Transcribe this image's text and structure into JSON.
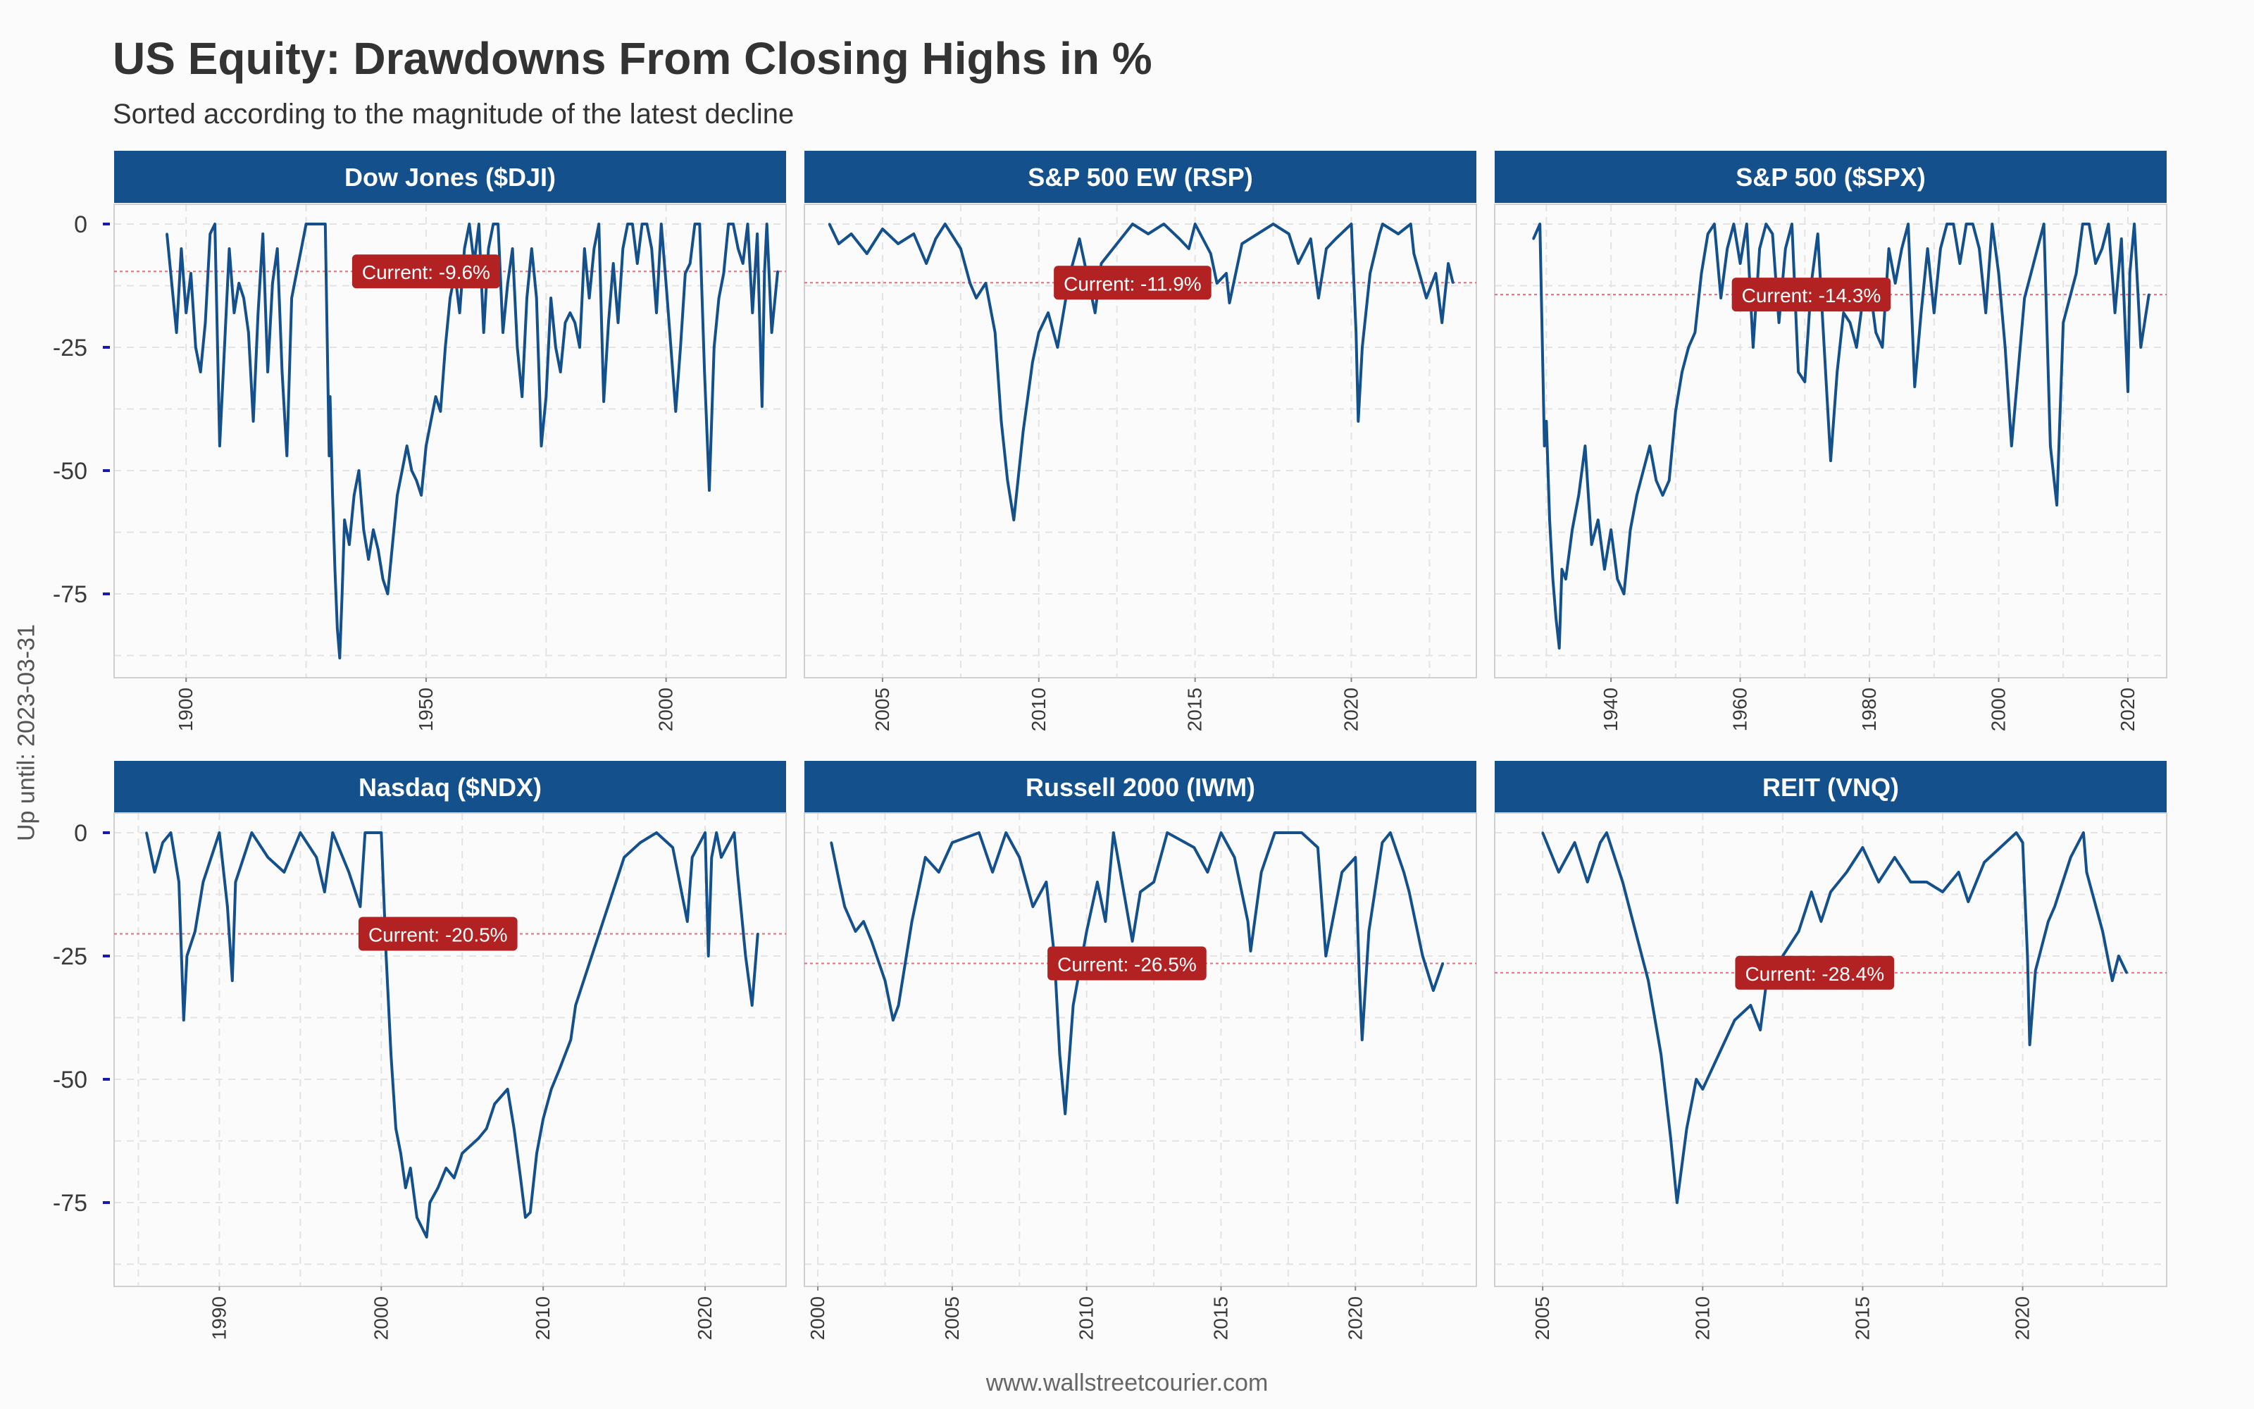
{
  "header": {
    "title": "US Equity: Drawdowns From Closing Highs in %",
    "subtitle": "Sorted according to the magnitude of the latest decline"
  },
  "y_caption": "Up until: 2023-03-31",
  "footer": "www.wallstreetcourier.com",
  "colors": {
    "strip": "#13508c",
    "line": "#13508c",
    "label_bg": "#b22222",
    "ref_line": "#e07080",
    "grid": "#e3e3e3",
    "panel_border": "#d0d0d0",
    "tick_mark": "#1a1aa8"
  },
  "chart_data": [
    {
      "type": "line",
      "title": "Dow Jones ($DJI)",
      "xlim": [
        1885,
        2025
      ],
      "x_ticks": [
        1900,
        1950,
        2000
      ],
      "ylim": [
        -92,
        4
      ],
      "y_ticks": [
        0,
        -25,
        -50,
        -75
      ],
      "current_value": -9.6,
      "current_label": "Current:  -9.6%",
      "current_label_x": 1950,
      "x": [
        1896,
        1897,
        1898,
        1899,
        1900,
        1901,
        1902,
        1903,
        1904,
        1905,
        1906,
        1907,
        1908,
        1909,
        1910,
        1911,
        1912,
        1913,
        1914,
        1915,
        1916,
        1917,
        1918,
        1919,
        1920,
        1921,
        1922,
        1923,
        1924,
        1925,
        1926,
        1927,
        1928,
        1929,
        1929.8,
        1930,
        1930.5,
        1931,
        1931.5,
        1932,
        1932.5,
        1933,
        1934,
        1935,
        1936,
        1937,
        1938,
        1939,
        1940,
        1941,
        1942,
        1943,
        1944,
        1945,
        1946,
        1947,
        1948,
        1949,
        1950,
        1951,
        1952,
        1953,
        1954,
        1955,
        1956,
        1957,
        1958,
        1959,
        1960,
        1961,
        1962,
        1963,
        1964,
        1965,
        1966,
        1967,
        1968,
        1969,
        1970,
        1971,
        1972,
        1973,
        1974,
        1975,
        1976,
        1977,
        1978,
        1979,
        1980,
        1981,
        1982,
        1983,
        1984,
        1985,
        1986,
        1987,
        1988,
        1989,
        1990,
        1991,
        1992,
        1993,
        1994,
        1995,
        1996,
        1997,
        1998,
        1999,
        2000,
        2001,
        2002,
        2003,
        2004,
        2005,
        2006,
        2007,
        2008,
        2009,
        2010,
        2011,
        2012,
        2013,
        2014,
        2015,
        2016,
        2017,
        2018,
        2019,
        2020,
        2020.5,
        2021,
        2022,
        2023.25
      ],
      "y": [
        -2,
        -12,
        -22,
        -5,
        -18,
        -10,
        -25,
        -30,
        -20,
        -2,
        0,
        -45,
        -25,
        -5,
        -18,
        -12,
        -15,
        -22,
        -40,
        -18,
        -2,
        -30,
        -12,
        -5,
        -30,
        -47,
        -15,
        -10,
        -5,
        0,
        0,
        0,
        0,
        0,
        -47,
        -35,
        -55,
        -70,
        -82,
        -88,
        -75,
        -60,
        -65,
        -55,
        -50,
        -62,
        -68,
        -62,
        -66,
        -72,
        -75,
        -65,
        -55,
        -50,
        -45,
        -50,
        -52,
        -55,
        -45,
        -40,
        -35,
        -38,
        -25,
        -15,
        -10,
        -18,
        -5,
        0,
        -8,
        0,
        -22,
        -5,
        0,
        0,
        -22,
        -12,
        -5,
        -25,
        -35,
        -15,
        -5,
        -15,
        -45,
        -35,
        -15,
        -25,
        -30,
        -20,
        -18,
        -20,
        -25,
        -5,
        -15,
        -5,
        0,
        -36,
        -20,
        -8,
        -20,
        -5,
        0,
        0,
        -8,
        0,
        0,
        -5,
        -18,
        0,
        -12,
        -25,
        -38,
        -25,
        -10,
        -8,
        0,
        0,
        -30,
        -54,
        -25,
        -15,
        -10,
        0,
        0,
        -5,
        -8,
        0,
        -18,
        -2,
        -37,
        -10,
        0,
        -22,
        -9.6
      ]
    },
    {
      "type": "line",
      "title": "S&P 500 EW (RSP)",
      "xlim": [
        2002.5,
        2024
      ],
      "x_ticks": [
        2005,
        2010,
        2015,
        2020
      ],
      "ylim": [
        -92,
        4
      ],
      "y_ticks": [
        0,
        -25,
        -50,
        -75
      ],
      "current_value": -11.9,
      "current_label": "Current: -11.9%",
      "current_label_x": 2013,
      "x": [
        2003.3,
        2003.6,
        2004,
        2004.5,
        2005,
        2005.5,
        2006,
        2006.4,
        2006.7,
        2007,
        2007.5,
        2007.8,
        2008,
        2008.3,
        2008.6,
        2008.8,
        2009,
        2009.2,
        2009.5,
        2009.8,
        2010,
        2010.3,
        2010.6,
        2011,
        2011.3,
        2011.6,
        2011.8,
        2012,
        2012.5,
        2013,
        2013.5,
        2014,
        2014.5,
        2014.8,
        2015,
        2015.5,
        2015.7,
        2016,
        2016.1,
        2016.5,
        2017,
        2017.5,
        2018,
        2018.3,
        2018.7,
        2018.95,
        2019.2,
        2019.5,
        2020,
        2020.15,
        2020.22,
        2020.35,
        2020.6,
        2020.9,
        2021,
        2021.5,
        2021.9,
        2022,
        2022.4,
        2022.7,
        2022.9,
        2023.1,
        2023.25
      ],
      "y": [
        0,
        -4,
        -2,
        -6,
        -1,
        -4,
        -2,
        -8,
        -3,
        0,
        -5,
        -12,
        -15,
        -12,
        -22,
        -40,
        -52,
        -60,
        -42,
        -28,
        -22,
        -18,
        -25,
        -10,
        -3,
        -12,
        -18,
        -8,
        -4,
        0,
        -2,
        0,
        -3,
        -5,
        0,
        -6,
        -12,
        -10,
        -16,
        -4,
        -2,
        0,
        -2,
        -8,
        -3,
        -15,
        -5,
        -3,
        0,
        -22,
        -40,
        -25,
        -10,
        -2,
        0,
        -2,
        0,
        -6,
        -15,
        -10,
        -20,
        -8,
        -11.9
      ]
    },
    {
      "type": "line",
      "title": "S&P 500 ($SPX)",
      "xlim": [
        1922,
        2026
      ],
      "x_ticks": [
        1940,
        1960,
        1980,
        2000,
        2020
      ],
      "ylim": [
        -92,
        4
      ],
      "y_ticks": [
        0,
        -25,
        -50,
        -75
      ],
      "current_value": -14.3,
      "current_label": "Current: -14.3%",
      "current_label_x": 1971,
      "x": [
        1928,
        1929,
        1929.7,
        1930,
        1930.5,
        1931,
        1931.5,
        1932,
        1932.4,
        1933,
        1934,
        1935,
        1936,
        1937,
        1938,
        1939,
        1940,
        1941,
        1942,
        1943,
        1944,
        1945,
        1946,
        1947,
        1948,
        1949,
        1950,
        1951,
        1952,
        1953,
        1954,
        1955,
        1956,
        1957,
        1958,
        1959,
        1960,
        1961,
        1962,
        1963,
        1964,
        1965,
        1966,
        1967,
        1968,
        1969,
        1970,
        1971,
        1972,
        1973,
        1974,
        1975,
        1976,
        1977,
        1978,
        1979,
        1980,
        1981,
        1982,
        1983,
        1984,
        1985,
        1986,
        1987,
        1988,
        1989,
        1990,
        1991,
        1992,
        1993,
        1994,
        1995,
        1996,
        1997,
        1998,
        1999,
        2000,
        2001,
        2002,
        2003,
        2004,
        2005,
        2006,
        2007,
        2008,
        2009,
        2010,
        2011,
        2012,
        2013,
        2014,
        2015,
        2016,
        2017,
        2018,
        2019,
        2020,
        2020.3,
        2021,
        2022,
        2023.25
      ],
      "y": [
        -3,
        0,
        -45,
        -40,
        -60,
        -72,
        -80,
        -86,
        -70,
        -72,
        -62,
        -55,
        -45,
        -65,
        -60,
        -70,
        -62,
        -72,
        -75,
        -62,
        -55,
        -50,
        -45,
        -52,
        -55,
        -52,
        -38,
        -30,
        -25,
        -22,
        -10,
        -2,
        0,
        -15,
        -5,
        0,
        -8,
        0,
        -25,
        -5,
        0,
        -2,
        -20,
        -5,
        0,
        -30,
        -32,
        -12,
        -2,
        -25,
        -48,
        -30,
        -18,
        -20,
        -25,
        -15,
        -12,
        -22,
        -25,
        -5,
        -12,
        -5,
        0,
        -33,
        -18,
        -5,
        -18,
        -5,
        0,
        0,
        -8,
        0,
        0,
        -5,
        -18,
        0,
        -10,
        -25,
        -45,
        -30,
        -15,
        -10,
        -5,
        0,
        -45,
        -57,
        -20,
        -15,
        -10,
        0,
        0,
        -8,
        -5,
        0,
        -18,
        -3,
        -34,
        -10,
        0,
        -25,
        -14.3
      ]
    },
    {
      "type": "line",
      "title": "Nasdaq ($NDX)",
      "xlim": [
        1983.5,
        2025
      ],
      "x_ticks": [
        1990,
        2000,
        2010,
        2020
      ],
      "ylim": [
        -92,
        4
      ],
      "y_ticks": [
        0,
        -25,
        -50,
        -75
      ],
      "current_value": -20.5,
      "current_label": "Current: -20.5%",
      "current_label_x": 2003.5,
      "x": [
        1985.5,
        1986,
        1986.5,
        1987,
        1987.5,
        1987.8,
        1988,
        1988.5,
        1989,
        1989.5,
        1990,
        1990.5,
        1990.8,
        1991,
        1992,
        1993,
        1994,
        1995,
        1996,
        1996.5,
        1997,
        1998,
        1998.7,
        1999,
        2000,
        2000.3,
        2000.6,
        2000.9,
        2001.2,
        2001.5,
        2001.8,
        2002.2,
        2002.5,
        2002.8,
        2003,
        2003.5,
        2004,
        2004.5,
        2005,
        2006,
        2006.5,
        2007,
        2007.8,
        2008.2,
        2008.6,
        2008.9,
        2009.2,
        2009.6,
        2010,
        2010.5,
        2011,
        2011.7,
        2012,
        2013,
        2014,
        2015,
        2016,
        2017,
        2018,
        2018.9,
        2019.2,
        2020,
        2020.2,
        2020.4,
        2020.7,
        2021,
        2021.8,
        2022,
        2022.5,
        2022.9,
        2023.25
      ],
      "y": [
        0,
        -8,
        -2,
        0,
        -10,
        -38,
        -25,
        -20,
        -10,
        -5,
        0,
        -15,
        -30,
        -10,
        0,
        -5,
        -8,
        0,
        -5,
        -12,
        0,
        -8,
        -15,
        0,
        0,
        -25,
        -45,
        -60,
        -65,
        -72,
        -68,
        -78,
        -80,
        -82,
        -75,
        -72,
        -68,
        -70,
        -65,
        -62,
        -60,
        -55,
        -52,
        -60,
        -70,
        -78,
        -77,
        -65,
        -58,
        -52,
        -48,
        -42,
        -35,
        -25,
        -15,
        -5,
        -2,
        0,
        -3,
        -18,
        -5,
        0,
        -25,
        -5,
        0,
        -5,
        0,
        -8,
        -25,
        -35,
        -20.5
      ]
    },
    {
      "type": "line",
      "title": "Russell 2000 (IWM)",
      "xlim": [
        1999.5,
        2024.5
      ],
      "x_ticks": [
        2000,
        2005,
        2010,
        2015,
        2020
      ],
      "ylim": [
        -92,
        4
      ],
      "y_ticks": [
        0,
        -25,
        -50,
        -75
      ],
      "current_value": -26.5,
      "current_label": "Current: -26.5%",
      "current_label_x": 2011.5,
      "x": [
        2000.5,
        2000.8,
        2001,
        2001.4,
        2001.7,
        2002,
        2002.5,
        2002.8,
        2003,
        2003.5,
        2004,
        2004.5,
        2005,
        2006,
        2006.5,
        2007,
        2007.5,
        2008,
        2008.5,
        2008.8,
        2009,
        2009.2,
        2009.5,
        2010,
        2010.4,
        2010.7,
        2011,
        2011.7,
        2012,
        2012.5,
        2013,
        2014,
        2014.5,
        2015,
        2015.5,
        2016,
        2016.1,
        2016.5,
        2017,
        2018,
        2018.6,
        2018.9,
        2019.5,
        2020,
        2020.15,
        2020.25,
        2020.5,
        2021,
        2021.3,
        2021.8,
        2022,
        2022.5,
        2022.9,
        2023.25
      ],
      "y": [
        -2,
        -10,
        -15,
        -20,
        -18,
        -22,
        -30,
        -38,
        -35,
        -18,
        -5,
        -8,
        -2,
        0,
        -8,
        0,
        -5,
        -15,
        -10,
        -25,
        -45,
        -57,
        -35,
        -20,
        -10,
        -18,
        0,
        -22,
        -12,
        -10,
        0,
        -3,
        -8,
        0,
        -5,
        -18,
        -24,
        -8,
        0,
        0,
        -3,
        -25,
        -8,
        -5,
        -30,
        -42,
        -20,
        -2,
        0,
        -8,
        -12,
        -25,
        -32,
        -26.5
      ]
    },
    {
      "type": "line",
      "title": "REIT (VNQ)",
      "xlim": [
        2003.5,
        2024.5
      ],
      "x_ticks": [
        2005,
        2010,
        2015,
        2020
      ],
      "ylim": [
        -92,
        4
      ],
      "y_ticks": [
        0,
        -25,
        -50,
        -75
      ],
      "current_value": -28.4,
      "current_label": "Current: -28.4%",
      "current_label_x": 2013.5,
      "x": [
        2005,
        2005.5,
        2006,
        2006.4,
        2006.8,
        2007,
        2007.5,
        2007.9,
        2008.3,
        2008.7,
        2009,
        2009.2,
        2009.5,
        2009.8,
        2010,
        2010.5,
        2011,
        2011.5,
        2011.8,
        2012,
        2012.5,
        2013,
        2013.4,
        2013.7,
        2014,
        2014.5,
        2015,
        2015.5,
        2016,
        2016.5,
        2017,
        2017.5,
        2018,
        2018.3,
        2018.8,
        2019.3,
        2019.8,
        2020,
        2020.15,
        2020.22,
        2020.4,
        2020.8,
        2021,
        2021.5,
        2021.9,
        2022,
        2022.5,
        2022.8,
        2023,
        2023.25
      ],
      "y": [
        0,
        -8,
        -2,
        -10,
        -2,
        0,
        -10,
        -20,
        -30,
        -45,
        -62,
        -75,
        -60,
        -50,
        -52,
        -45,
        -38,
        -35,
        -40,
        -30,
        -25,
        -20,
        -12,
        -18,
        -12,
        -8,
        -3,
        -10,
        -5,
        -10,
        -10,
        -12,
        -8,
        -14,
        -6,
        -3,
        0,
        -2,
        -25,
        -43,
        -28,
        -18,
        -15,
        -5,
        0,
        -8,
        -20,
        -30,
        -25,
        -28.4
      ]
    }
  ]
}
